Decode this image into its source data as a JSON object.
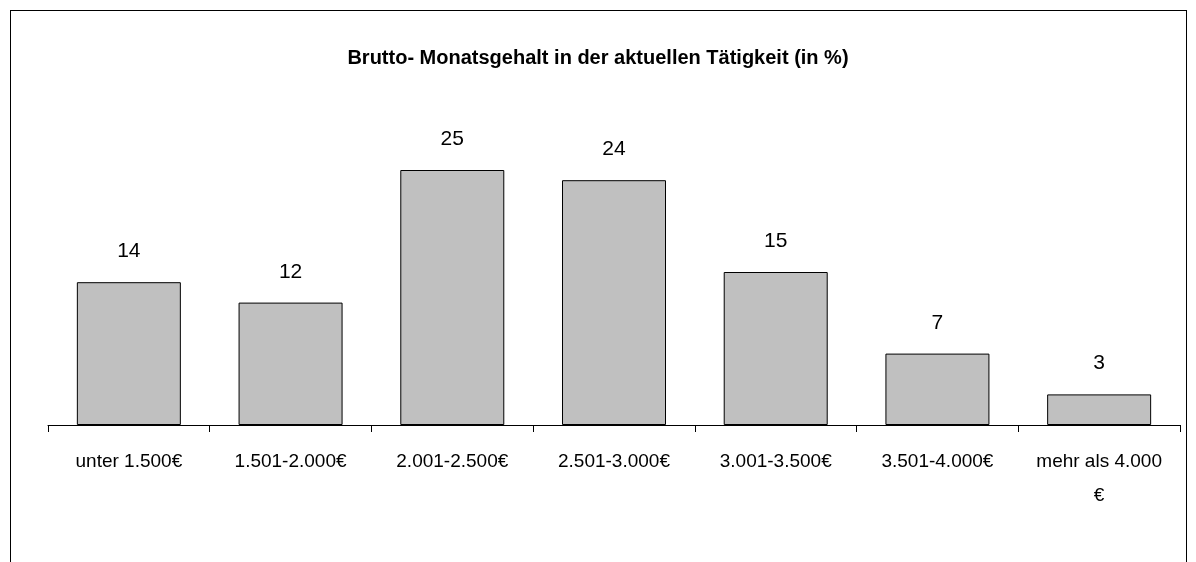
{
  "chart_data": {
    "type": "bar",
    "title": "Brutto- Monatsgehalt in der aktuellen Tätigkeit (in %)",
    "categories": [
      "unter 1.500€",
      "1.501-2.000€",
      "2.001-2.500€",
      "2.501-3.000€",
      "3.001-3.500€",
      "3.501-4.000€",
      "mehr als 4.000€"
    ],
    "values": [
      14,
      12,
      25,
      24,
      15,
      7,
      3
    ],
    "color": "#c0c0c0",
    "data_labels": true
  }
}
